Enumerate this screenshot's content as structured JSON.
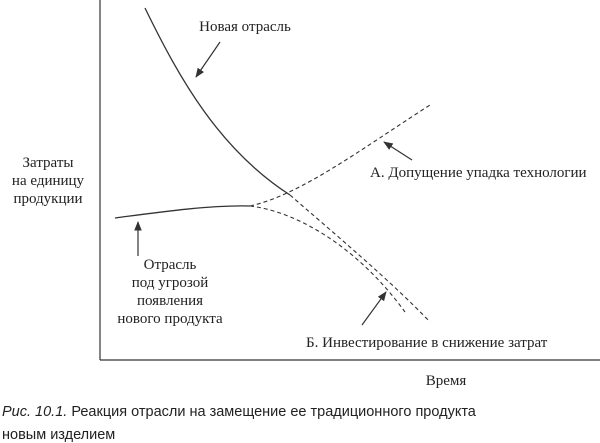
{
  "axes": {
    "y_label": [
      "Затраты",
      "на единицу",
      "продукции"
    ],
    "x_label": "Время"
  },
  "annotations": {
    "new_industry": "Новая отрасль",
    "option_a": "А. Допущение упадка технологии",
    "threatened_industry": [
      "Отрасль",
      "под угрозой",
      "появления",
      "нового продукта"
    ],
    "option_b": "Б. Инвестирование в снижение затрат"
  },
  "caption": {
    "label": "Рис. 10.1.",
    "lines": [
      "Реакция отрасли на замещение ее традиционного продукта",
      "новым изделием"
    ]
  }
}
